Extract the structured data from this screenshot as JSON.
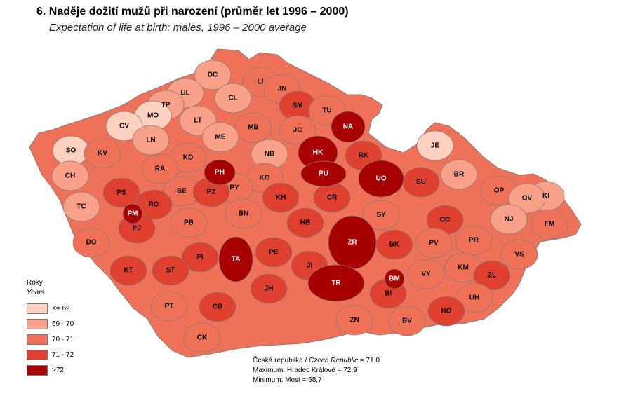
{
  "title": "6. Naděje dožití mužů při narození (průměr let 1996 – 2000)",
  "subtitle": "Expectation of life at birth: males, 1996 – 2000 average",
  "legend": {
    "title": "Roky",
    "subtitle": "Years",
    "items": [
      {
        "label": "<= 69",
        "color": "#fdd0c0"
      },
      {
        "label": "69 - 70",
        "color": "#f8a088"
      },
      {
        "label": "70 - 71",
        "color": "#ef7258"
      },
      {
        "label": "71 - 72",
        "color": "#df4030"
      },
      {
        "label": ">72",
        "color": "#a80000"
      }
    ]
  },
  "stats": {
    "republic_cz": "Česká republika / ",
    "republic_en": "Czech Republic",
    "republic_value": " = 71,0",
    "maximum": "Maximum: Hradec Králové = 72,9",
    "minimum": "Minimum: Most = 68,7"
  },
  "districts": [
    {
      "code": "DC",
      "cls": 1
    },
    {
      "code": "LI",
      "cls": 2
    },
    {
      "code": "JN",
      "cls": 2
    },
    {
      "code": "UL",
      "cls": 1
    },
    {
      "code": "CL",
      "cls": 1
    },
    {
      "code": "TP",
      "cls": 1
    },
    {
      "code": "SM",
      "cls": 3
    },
    {
      "code": "TU",
      "cls": 2
    },
    {
      "code": "MO",
      "cls": 0
    },
    {
      "code": "LT",
      "cls": 1
    },
    {
      "code": "MB",
      "cls": 2
    },
    {
      "code": "NA",
      "cls": 4
    },
    {
      "code": "CV",
      "cls": 0
    },
    {
      "code": "ME",
      "cls": 1
    },
    {
      "code": "JC",
      "cls": 2
    },
    {
      "code": "JE",
      "cls": 0
    },
    {
      "code": "LN",
      "cls": 1
    },
    {
      "code": "SO",
      "cls": 0
    },
    {
      "code": "KV",
      "cls": 2
    },
    {
      "code": "KD",
      "cls": 2
    },
    {
      "code": "NB",
      "cls": 1
    },
    {
      "code": "HK",
      "cls": 4
    },
    {
      "code": "RK",
      "cls": 3
    },
    {
      "code": "CH",
      "cls": 1
    },
    {
      "code": "RA",
      "cls": 2
    },
    {
      "code": "PH",
      "cls": 4
    },
    {
      "code": "BR",
      "cls": 1
    },
    {
      "code": "PU",
      "cls": 4
    },
    {
      "code": "KO",
      "cls": 2
    },
    {
      "code": "UO",
      "cls": 4
    },
    {
      "code": "PY",
      "cls": 2
    },
    {
      "code": "SU",
      "cls": 3
    },
    {
      "code": "KI",
      "cls": 1
    },
    {
      "code": "PS",
      "cls": 3
    },
    {
      "code": "BE",
      "cls": 2
    },
    {
      "code": "PZ",
      "cls": 3
    },
    {
      "code": "OP",
      "cls": 2
    },
    {
      "code": "KH",
      "cls": 3
    },
    {
      "code": "CR",
      "cls": 3
    },
    {
      "code": "OV",
      "cls": 1
    },
    {
      "code": "TC",
      "cls": 1
    },
    {
      "code": "RO",
      "cls": 3
    },
    {
      "code": "PM",
      "cls": 4
    },
    {
      "code": "BN",
      "cls": 2
    },
    {
      "code": "SY",
      "cls": 2
    },
    {
      "code": "NJ",
      "cls": 1
    },
    {
      "code": "PB",
      "cls": 2
    },
    {
      "code": "PJ",
      "cls": 3
    },
    {
      "code": "OC",
      "cls": 3
    },
    {
      "code": "FM",
      "cls": 2
    },
    {
      "code": "HB",
      "cls": 3
    },
    {
      "code": "PR",
      "cls": 2
    },
    {
      "code": "ZR",
      "cls": 4
    },
    {
      "code": "DO",
      "cls": 2
    },
    {
      "code": "BK",
      "cls": 3
    },
    {
      "code": "PV",
      "cls": 2
    },
    {
      "code": "PE",
      "cls": 3
    },
    {
      "code": "VS",
      "cls": 2
    },
    {
      "code": "TA",
      "cls": 4
    },
    {
      "code": "PI",
      "cls": 3
    },
    {
      "code": "KM",
      "cls": 2
    },
    {
      "code": "JI",
      "cls": 3
    },
    {
      "code": "KT",
      "cls": 3
    },
    {
      "code": "ST",
      "cls": 3
    },
    {
      "code": "VY",
      "cls": 2
    },
    {
      "code": "ZL",
      "cls": 3
    },
    {
      "code": "BM",
      "cls": 4
    },
    {
      "code": "TR",
      "cls": 4
    },
    {
      "code": "JH",
      "cls": 3
    },
    {
      "code": "BI",
      "cls": 3
    },
    {
      "code": "UH",
      "cls": 2
    },
    {
      "code": "PT",
      "cls": 2
    },
    {
      "code": "CB",
      "cls": 3
    },
    {
      "code": "HO",
      "cls": 3
    },
    {
      "code": "ZN",
      "cls": 2
    },
    {
      "code": "BV",
      "cls": 2
    },
    {
      "code": "CK",
      "cls": 2
    }
  ]
}
